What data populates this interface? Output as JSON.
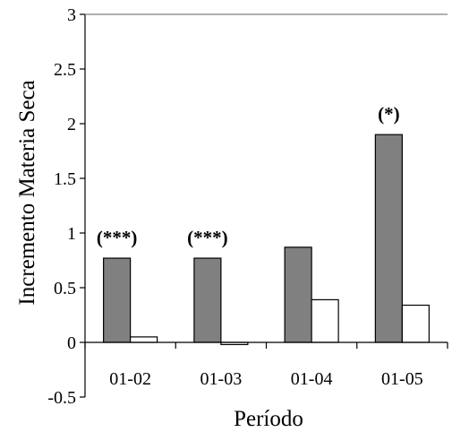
{
  "chart_data": {
    "type": "bar",
    "categories": [
      "01-02",
      "01-03",
      "01-04",
      "01-05"
    ],
    "series": [
      {
        "values": [
          0.77,
          0.77,
          0.87,
          1.9
        ],
        "color": "#808080"
      },
      {
        "values": [
          0.05,
          -0.02,
          0.39,
          0.34
        ],
        "color": "#ffffff"
      }
    ],
    "annotations": [
      "(***)",
      "(***)",
      "",
      "(*)"
    ],
    "xlabel": "Período",
    "ylabel": "Incremento Materia Seca",
    "ylim": [
      -0.5,
      3
    ],
    "yticks": [
      "-0.5",
      "0",
      "0.5",
      "1",
      "1.5",
      "2",
      "2.5",
      "3"
    ],
    "grid": false,
    "legend": "none"
  }
}
